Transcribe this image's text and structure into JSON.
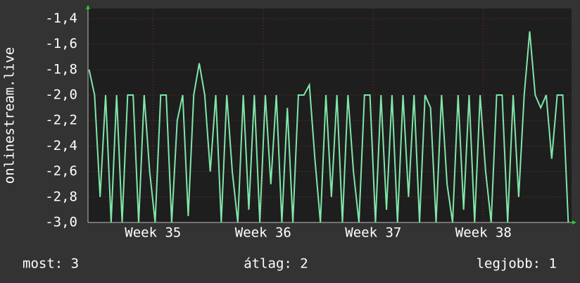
{
  "chart_data": {
    "type": "line",
    "ylabel": "onlinestream.live",
    "x": [
      34.42,
      34.47,
      34.52,
      34.57,
      34.62,
      34.67,
      34.72,
      34.77,
      34.82,
      34.87,
      34.92,
      34.97,
      35.02,
      35.07,
      35.12,
      35.17,
      35.22,
      35.27,
      35.32,
      35.37,
      35.42,
      35.47,
      35.52,
      35.57,
      35.62,
      35.67,
      35.72,
      35.77,
      35.82,
      35.87,
      35.92,
      35.97,
      36.02,
      36.07,
      36.12,
      36.17,
      36.22,
      36.27,
      36.32,
      36.37,
      36.42,
      36.47,
      36.52,
      36.57,
      36.62,
      36.67,
      36.72,
      36.77,
      36.82,
      36.87,
      36.92,
      36.97,
      37.02,
      37.07,
      37.12,
      37.17,
      37.22,
      37.27,
      37.32,
      37.37,
      37.42,
      37.47,
      37.52,
      37.57,
      37.62,
      37.67,
      37.72,
      37.77,
      37.82,
      37.87,
      37.92,
      37.97,
      38.02,
      38.07,
      38.12,
      38.17,
      38.22,
      38.27,
      38.32,
      38.37,
      38.42,
      38.47,
      38.52,
      38.57,
      38.62,
      38.67,
      38.72,
      38.77
    ],
    "series": [
      {
        "color": "#7fe6a8",
        "values": [
          -1.8,
          -2.0,
          -2.8,
          -2.0,
          -3.0,
          -2.0,
          -3.0,
          -2.0,
          -2.0,
          -3.0,
          -2.0,
          -2.6,
          -3.0,
          -2.0,
          -2.0,
          -3.0,
          -2.2,
          -2.0,
          -2.95,
          -2.0,
          -1.75,
          -2.0,
          -2.6,
          -2.0,
          -3.0,
          -2.0,
          -2.6,
          -3.0,
          -2.0,
          -2.9,
          -2.0,
          -3.0,
          -2.0,
          -2.7,
          -2.0,
          -3.0,
          -2.1,
          -3.0,
          -2.0,
          -2.0,
          -1.92,
          -2.5,
          -3.0,
          -2.0,
          -2.8,
          -2.0,
          -3.0,
          -2.0,
          -2.6,
          -3.0,
          -2.0,
          -2.0,
          -3.0,
          -2.0,
          -2.9,
          -2.0,
          -3.0,
          -2.0,
          -2.8,
          -2.0,
          -3.0,
          -2.0,
          -2.1,
          -3.0,
          -2.0,
          -2.7,
          -3.0,
          -2.0,
          -2.9,
          -2.0,
          -3.0,
          -2.0,
          -2.6,
          -3.0,
          -2.0,
          -2.0,
          -3.0,
          -2.0,
          -2.8,
          -2.0,
          -1.5,
          -2.0,
          -2.1,
          -2.0,
          -2.5,
          -2.0,
          -2.0,
          -3.0
        ]
      }
    ],
    "xlim": [
      34.41,
      38.8
    ],
    "xticks": [
      {
        "value": 35,
        "label": "Week 35"
      },
      {
        "value": 36,
        "label": "Week 36"
      },
      {
        "value": 37,
        "label": "Week 37"
      },
      {
        "value": 38,
        "label": "Week 38"
      }
    ],
    "ylim": [
      -3.0,
      -1.32
    ],
    "yticks": [
      {
        "value": -3.0,
        "label": "-3,0"
      },
      {
        "value": -2.8,
        "label": "-2,8"
      },
      {
        "value": -2.6,
        "label": "-2,6"
      },
      {
        "value": -2.4,
        "label": "-2,4"
      },
      {
        "value": -2.2,
        "label": "-2,2"
      },
      {
        "value": -2.0,
        "label": "-2,0"
      },
      {
        "value": -1.8,
        "label": "-1,8"
      },
      {
        "value": -1.6,
        "label": "-1,6"
      },
      {
        "value": -1.4,
        "label": "-1,4"
      }
    ],
    "grid": true,
    "footer_labels": [
      "most: 3",
      "átlag: 2",
      "legjobb: 1"
    ]
  }
}
